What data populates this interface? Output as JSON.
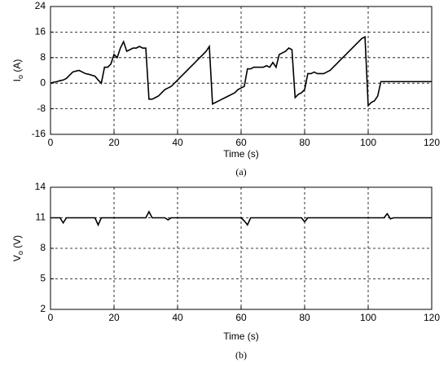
{
  "chart_data": [
    {
      "type": "line",
      "caption": "(a)",
      "x_label": "Time (s)",
      "y_label": {
        "main": "I",
        "sub": "o",
        "rest": " (A)"
      },
      "xlim": [
        0,
        120
      ],
      "xticks": [
        0,
        20,
        40,
        60,
        80,
        100,
        120
      ],
      "ylim": [
        -16,
        24
      ],
      "yticks": [
        -16,
        -8,
        0,
        8,
        16,
        24
      ],
      "grid": true,
      "series": [
        {
          "color": "#000000",
          "x": [
            0,
            1,
            2,
            3,
            4,
            5,
            6,
            7,
            8,
            9,
            10,
            11,
            12,
            13,
            14,
            15,
            16,
            17,
            18,
            19,
            20,
            21,
            22,
            23,
            24,
            25,
            26,
            27,
            28,
            29,
            30,
            31,
            32,
            33,
            34,
            35,
            36,
            37,
            38,
            39,
            40,
            41,
            42,
            43,
            44,
            45,
            46,
            47,
            48,
            49,
            50,
            51,
            52,
            53,
            54,
            55,
            56,
            57,
            58,
            59,
            60,
            61,
            62,
            63,
            64,
            65,
            66,
            67,
            68,
            69,
            70,
            71,
            72,
            73,
            74,
            75,
            76,
            77,
            78,
            79,
            80,
            81,
            82,
            83,
            84,
            85,
            86,
            87,
            88,
            89,
            90,
            91,
            92,
            93,
            94,
            95,
            96,
            97,
            98,
            99,
            100,
            101,
            102,
            103,
            104,
            105,
            106,
            107,
            108,
            109,
            110,
            111,
            112,
            113,
            114,
            115,
            116,
            117,
            118,
            119,
            120
          ],
          "values": [
            0,
            0.3,
            0.5,
            0.8,
            1,
            1.5,
            2.5,
            3.5,
            3.8,
            4,
            3.5,
            3,
            2.8,
            2.5,
            2.2,
            1,
            0,
            5,
            5,
            6,
            9,
            8,
            11,
            13,
            10,
            10.5,
            11,
            11,
            11.5,
            11,
            11,
            -5,
            -5,
            -4.5,
            -4,
            -3,
            -2,
            -1.5,
            -1,
            0,
            1,
            2,
            3,
            4,
            5,
            6,
            7,
            8,
            9,
            10,
            11.5,
            -6.5,
            -6,
            -5.5,
            -5,
            -4.5,
            -4,
            -3.5,
            -3,
            -2,
            -1.5,
            -1,
            4.5,
            4.5,
            5,
            5,
            5,
            5,
            5.5,
            5,
            6.5,
            5,
            9,
            9.5,
            10,
            11,
            10.5,
            -4.5,
            -3.5,
            -3,
            -2,
            3,
            3,
            3.5,
            3,
            3,
            3,
            3.5,
            4,
            5,
            6,
            7,
            8,
            9,
            10,
            11,
            12,
            13,
            14,
            14.5,
            -7,
            -6,
            -5.5,
            -4,
            0.5,
            0.5,
            0.5,
            0.5,
            0.5,
            0.5,
            0.5,
            0.5,
            0.5,
            0.5,
            0.5,
            0.5,
            0.5,
            0.5,
            0.5,
            0.5,
            0.5
          ]
        }
      ]
    },
    {
      "type": "line",
      "caption": "(b)",
      "x_label": "Time (s)",
      "y_label": {
        "main": "V",
        "sub": "o",
        "rest": " (V)"
      },
      "xlim": [
        0,
        120
      ],
      "xticks": [
        0,
        20,
        40,
        60,
        80,
        100,
        120
      ],
      "ylim": [
        2,
        14
      ],
      "yticks": [
        2,
        5,
        8,
        11,
        14
      ],
      "grid": true,
      "series": [
        {
          "color": "#000000",
          "x": [
            0,
            1,
            2,
            3,
            4,
            5,
            6,
            7,
            8,
            9,
            10,
            11,
            12,
            13,
            14,
            15,
            16,
            17,
            18,
            19,
            20,
            21,
            22,
            23,
            24,
            25,
            26,
            27,
            28,
            29,
            30,
            31,
            32,
            33,
            34,
            35,
            36,
            37,
            38,
            39,
            40,
            41,
            42,
            43,
            44,
            45,
            46,
            47,
            48,
            49,
            50,
            51,
            52,
            53,
            54,
            55,
            56,
            57,
            58,
            59,
            60,
            61,
            62,
            63,
            64,
            65,
            66,
            67,
            68,
            69,
            70,
            71,
            72,
            73,
            74,
            75,
            76,
            77,
            78,
            79,
            80,
            81,
            82,
            83,
            84,
            85,
            86,
            87,
            88,
            89,
            90,
            91,
            92,
            93,
            94,
            95,
            96,
            97,
            98,
            99,
            100,
            101,
            102,
            103,
            104,
            105,
            106,
            107,
            108,
            109,
            110,
            111,
            112,
            113,
            114,
            115,
            116,
            117,
            118,
            119,
            120
          ],
          "values": [
            11,
            11,
            11,
            11,
            10.5,
            11,
            11,
            11,
            11,
            11,
            11,
            11,
            11,
            11,
            11,
            10.3,
            11,
            11,
            11,
            11,
            11,
            11,
            11,
            11,
            11,
            11,
            11,
            11,
            11,
            11,
            11,
            11.6,
            11,
            11,
            11,
            11,
            11,
            10.8,
            11,
            11,
            11,
            11,
            11,
            11,
            11,
            11,
            11,
            11,
            11,
            11,
            11,
            11,
            11,
            11,
            11,
            11,
            11,
            11,
            11,
            11,
            11,
            10.7,
            10.3,
            11,
            11,
            11,
            11,
            11,
            11,
            11,
            11,
            11,
            11,
            11,
            11,
            11,
            11,
            11,
            11,
            11,
            10.6,
            11,
            11,
            11,
            11,
            11,
            11,
            11,
            11,
            11,
            11,
            11,
            11,
            11,
            11,
            11,
            11,
            11,
            11,
            11,
            11,
            11,
            11,
            11,
            11,
            11,
            11.4,
            10.9,
            11,
            11,
            11,
            11,
            11,
            11,
            11,
            11,
            11,
            11,
            11,
            11,
            11
          ]
        }
      ]
    }
  ]
}
